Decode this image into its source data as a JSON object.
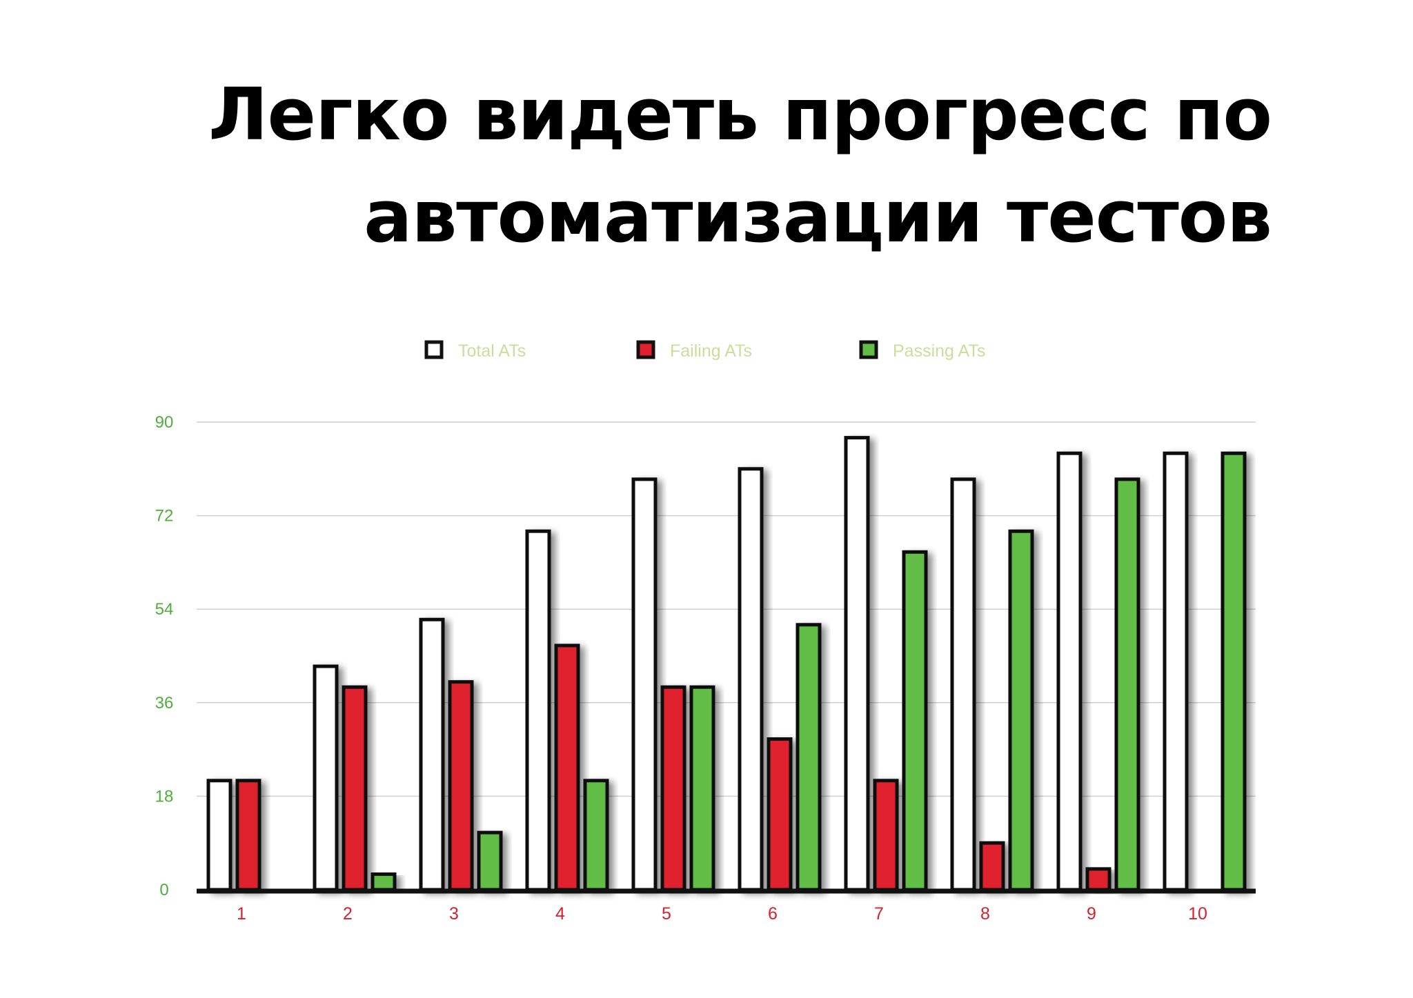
{
  "slide": {
    "title_line1": "Легко видеть прогресс по",
    "title_line2": "автоматизации тестов"
  },
  "colors": {
    "total": "#ffffff",
    "failing": "#e0202f",
    "passing": "#62bd46",
    "bar_outline": "#111111",
    "legend_text": "#c8df9c",
    "y_tick_text": "#4fae3a",
    "x_tick_text": "#d8202e",
    "gridline": "#cfcfcf",
    "axis": "#111111"
  },
  "chart_data": {
    "type": "bar",
    "title": "",
    "xlabel": "",
    "ylabel": "",
    "categories": [
      "1",
      "2",
      "3",
      "4",
      "5",
      "6",
      "7",
      "8",
      "9",
      "10"
    ],
    "series": [
      {
        "name": "Total ATs",
        "values": [
          21,
          43,
          52,
          69,
          79,
          81,
          87,
          79,
          84,
          84
        ]
      },
      {
        "name": "Failing ATs",
        "values": [
          21,
          39,
          40,
          47,
          39,
          29,
          21,
          9,
          4,
          0
        ]
      },
      {
        "name": "Passing ATs",
        "values": [
          0,
          3,
          11,
          21,
          39,
          51,
          65,
          69,
          79,
          84
        ]
      }
    ],
    "ylim": [
      0,
      90
    ],
    "yticks": [
      "0",
      "18",
      "36",
      "54",
      "72",
      "90"
    ],
    "grid": true,
    "legend_position": "top"
  }
}
